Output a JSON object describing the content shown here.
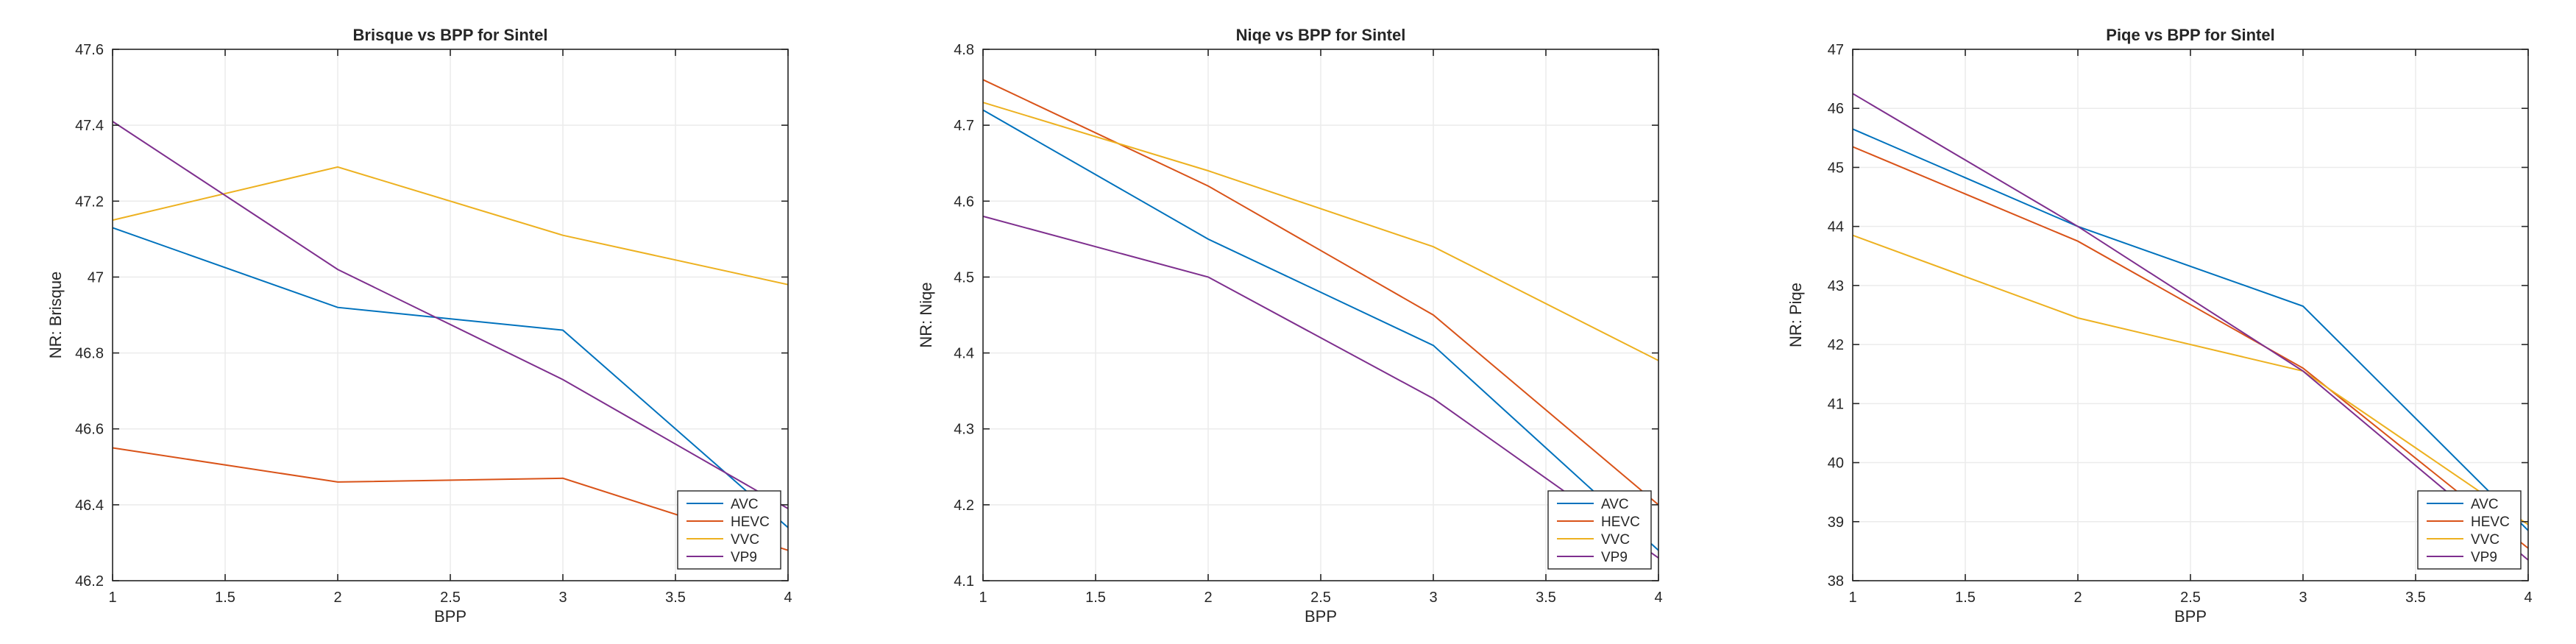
{
  "chart_data": [
    {
      "type": "line",
      "title": "Brisque vs BPP for Sintel",
      "xlabel": "BPP",
      "ylabel": "NR: Brisque",
      "xlim": [
        1,
        4
      ],
      "ylim": [
        46.2,
        47.6
      ],
      "x": [
        1,
        2,
        3,
        4
      ],
      "xticks": [
        "1",
        "1.5",
        "2",
        "2.5",
        "3",
        "3.5",
        "4"
      ],
      "yticks": [
        "46.2",
        "46.4",
        "46.6",
        "46.8",
        "47",
        "47.2",
        "47.4",
        "47.6"
      ],
      "series": [
        {
          "name": "AVC",
          "values": [
            47.13,
            46.92,
            46.86,
            46.34
          ]
        },
        {
          "name": "HEVC",
          "values": [
            46.55,
            46.46,
            46.47,
            46.28
          ]
        },
        {
          "name": "VVC",
          "values": [
            47.15,
            47.29,
            47.11,
            46.98
          ]
        },
        {
          "name": "VP9",
          "values": [
            47.41,
            47.02,
            46.73,
            46.39
          ]
        }
      ],
      "legend": "bottom-right",
      "grid": true
    },
    {
      "type": "line",
      "title": "Niqe vs BPP for Sintel",
      "xlabel": "BPP",
      "ylabel": "NR: Niqe",
      "xlim": [
        1,
        4
      ],
      "ylim": [
        4.1,
        4.8
      ],
      "x": [
        1,
        2,
        3,
        4
      ],
      "xticks": [
        "1",
        "1.5",
        "2",
        "2.5",
        "3",
        "3.5",
        "4"
      ],
      "yticks": [
        "4.1",
        "4.2",
        "4.3",
        "4.4",
        "4.5",
        "4.6",
        "4.7",
        "4.8"
      ],
      "series": [
        {
          "name": "AVC",
          "values": [
            4.72,
            4.55,
            4.41,
            4.14
          ]
        },
        {
          "name": "HEVC",
          "values": [
            4.76,
            4.62,
            4.45,
            4.2
          ]
        },
        {
          "name": "VVC",
          "values": [
            4.73,
            4.64,
            4.54,
            4.39
          ]
        },
        {
          "name": "VP9",
          "values": [
            4.58,
            4.5,
            4.34,
            4.13
          ]
        }
      ],
      "legend": "bottom-right",
      "grid": true
    },
    {
      "type": "line",
      "title": "Piqe vs BPP for Sintel",
      "xlabel": "BPP",
      "ylabel": "NR: Piqe",
      "xlim": [
        1,
        4
      ],
      "ylim": [
        38,
        47
      ],
      "x": [
        1,
        2,
        3,
        4
      ],
      "xticks": [
        "1",
        "1.5",
        "2",
        "2.5",
        "3",
        "3.5",
        "4"
      ],
      "yticks": [
        "38",
        "39",
        "40",
        "41",
        "42",
        "43",
        "44",
        "45",
        "46",
        "47"
      ],
      "series": [
        {
          "name": "AVC",
          "values": [
            45.65,
            44.0,
            42.65,
            38.85
          ]
        },
        {
          "name": "HEVC",
          "values": [
            45.35,
            43.75,
            41.6,
            38.55
          ]
        },
        {
          "name": "VVC",
          "values": [
            43.85,
            42.45,
            41.55,
            38.95
          ]
        },
        {
          "name": "VP9",
          "values": [
            46.25,
            44.0,
            41.55,
            38.35
          ]
        }
      ],
      "legend": "bottom-right",
      "grid": true
    }
  ],
  "colors": {
    "AVC": "#0072BD",
    "HEVC": "#D95319",
    "VVC": "#EDB120",
    "VP9": "#7E2F8E",
    "grid": "#ebebeb",
    "axis": "#262626"
  }
}
